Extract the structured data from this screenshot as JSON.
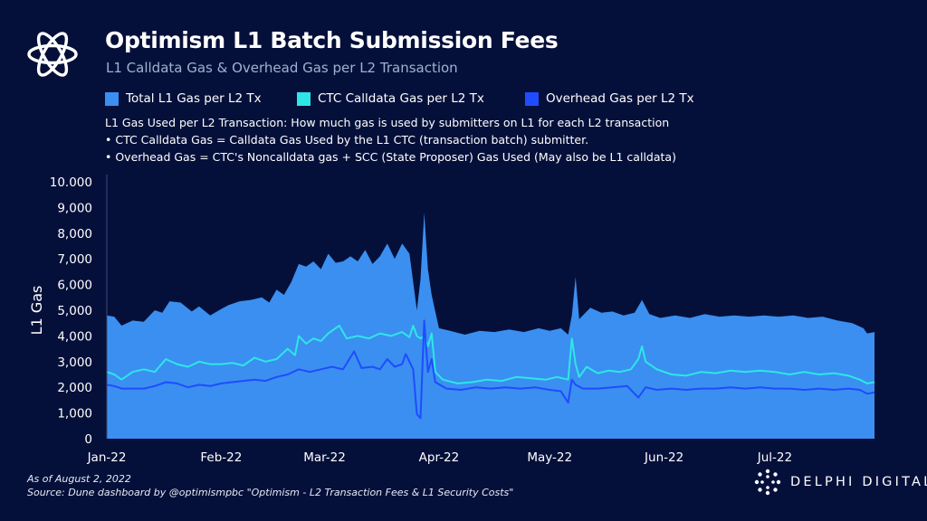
{
  "header": {
    "title": "Optimism L1 Batch Submission Fees",
    "subtitle": "L1 Calldata Gas & Overhead Gas per L2 Transaction"
  },
  "notes": [
    "L1 Gas Used per L2 Transaction: How much gas is used by submitters on L1 for each L2 transaction",
    "• CTC Calldata Gas = Calldata Gas Used by the L1 CTC (transaction batch) submitter.",
    "• Overhead Gas = CTC's Noncalldata gas + SCC (State Proposer) Gas Used (May also be L1 calldata)"
  ],
  "footer": {
    "as_of": "As of August 2, 2022",
    "source": "Source: Dune dashboard by @optimismpbc \"Optimism - L2 Transaction Fees & L1 Security Costs\""
  },
  "brand": {
    "name": "DELPHI DIGITAL",
    "logo_icon": "delphi-logo-icon"
  },
  "chart_data": {
    "type": "area",
    "ylabel": "L1 Gas",
    "ylim": [
      0,
      10000
    ],
    "yticks": [
      0,
      1000,
      2000,
      3000,
      4000,
      5000,
      6000,
      7000,
      8000,
      9000,
      10000
    ],
    "ytick_labels": [
      "0",
      "1,000",
      "2,000",
      "3,000",
      "4,000",
      "5,000",
      "6,000",
      "7,000",
      "8,000",
      "9,000",
      "10.000"
    ],
    "xlim": [
      "2022-01-01",
      "2022-07-28"
    ],
    "xticks": [
      {
        "date": "2022-01-01",
        "label": "Jan-22"
      },
      {
        "date": "2022-02-01",
        "label": "Feb-22"
      },
      {
        "date": "2022-03-01",
        "label": "Mar-22"
      },
      {
        "date": "2022-04-01",
        "label": "Apr-22"
      },
      {
        "date": "2022-05-01",
        "label": "May-22"
      },
      {
        "date": "2022-06-01",
        "label": "Jun-22"
      },
      {
        "date": "2022-07-01",
        "label": "Jul-22"
      }
    ],
    "legend_position": "top",
    "grid": false,
    "series": [
      {
        "name": "Total L1 Gas per L2 Tx",
        "style": "area",
        "color": "#3b8ff0",
        "points": [
          [
            "2022-01-01",
            4800
          ],
          [
            "2022-01-03",
            4750
          ],
          [
            "2022-01-05",
            4400
          ],
          [
            "2022-01-08",
            4600
          ],
          [
            "2022-01-11",
            4550
          ],
          [
            "2022-01-14",
            5000
          ],
          [
            "2022-01-16",
            4900
          ],
          [
            "2022-01-18",
            5350
          ],
          [
            "2022-01-21",
            5300
          ],
          [
            "2022-01-24",
            4950
          ],
          [
            "2022-01-26",
            5150
          ],
          [
            "2022-01-29",
            4800
          ],
          [
            "2022-02-01",
            5050
          ],
          [
            "2022-02-03",
            5200
          ],
          [
            "2022-02-06",
            5350
          ],
          [
            "2022-02-09",
            5400
          ],
          [
            "2022-02-12",
            5500
          ],
          [
            "2022-02-14",
            5300
          ],
          [
            "2022-02-16",
            5800
          ],
          [
            "2022-02-18",
            5600
          ],
          [
            "2022-02-20",
            6100
          ],
          [
            "2022-02-22",
            6800
          ],
          [
            "2022-02-24",
            6700
          ],
          [
            "2022-02-26",
            6900
          ],
          [
            "2022-02-28",
            6600
          ],
          [
            "2022-03-02",
            7200
          ],
          [
            "2022-03-04",
            6850
          ],
          [
            "2022-03-06",
            6900
          ],
          [
            "2022-03-08",
            7100
          ],
          [
            "2022-03-10",
            6900
          ],
          [
            "2022-03-12",
            7350
          ],
          [
            "2022-03-14",
            6800
          ],
          [
            "2022-03-16",
            7100
          ],
          [
            "2022-03-18",
            7600
          ],
          [
            "2022-03-20",
            7000
          ],
          [
            "2022-03-22",
            7600
          ],
          [
            "2022-03-24",
            7200
          ],
          [
            "2022-03-26",
            5000
          ],
          [
            "2022-03-27",
            6200
          ],
          [
            "2022-03-28",
            8800
          ],
          [
            "2022-03-29",
            6600
          ],
          [
            "2022-03-30",
            5600
          ],
          [
            "2022-04-01",
            4300
          ],
          [
            "2022-04-04",
            4200
          ],
          [
            "2022-04-08",
            4050
          ],
          [
            "2022-04-12",
            4200
          ],
          [
            "2022-04-16",
            4150
          ],
          [
            "2022-04-20",
            4250
          ],
          [
            "2022-04-24",
            4150
          ],
          [
            "2022-04-28",
            4300
          ],
          [
            "2022-05-01",
            4200
          ],
          [
            "2022-05-04",
            4300
          ],
          [
            "2022-05-06",
            4050
          ],
          [
            "2022-05-07",
            4800
          ],
          [
            "2022-05-08",
            6300
          ],
          [
            "2022-05-09",
            4650
          ],
          [
            "2022-05-12",
            5100
          ],
          [
            "2022-05-15",
            4900
          ],
          [
            "2022-05-18",
            4950
          ],
          [
            "2022-05-21",
            4800
          ],
          [
            "2022-05-24",
            4900
          ],
          [
            "2022-05-26",
            5400
          ],
          [
            "2022-05-28",
            4850
          ],
          [
            "2022-05-31",
            4700
          ],
          [
            "2022-06-04",
            4800
          ],
          [
            "2022-06-08",
            4700
          ],
          [
            "2022-06-12",
            4850
          ],
          [
            "2022-06-16",
            4750
          ],
          [
            "2022-06-20",
            4800
          ],
          [
            "2022-06-24",
            4750
          ],
          [
            "2022-06-28",
            4800
          ],
          [
            "2022-07-02",
            4750
          ],
          [
            "2022-07-06",
            4800
          ],
          [
            "2022-07-10",
            4700
          ],
          [
            "2022-07-14",
            4750
          ],
          [
            "2022-07-18",
            4600
          ],
          [
            "2022-07-22",
            4500
          ],
          [
            "2022-07-25",
            4300
          ],
          [
            "2022-07-26",
            4100
          ],
          [
            "2022-07-28",
            4150
          ]
        ]
      },
      {
        "name": "CTC Calldata Gas per L2 Tx",
        "style": "line",
        "color": "#2ee6e6",
        "points": [
          [
            "2022-01-01",
            2600
          ],
          [
            "2022-01-03",
            2500
          ],
          [
            "2022-01-05",
            2300
          ],
          [
            "2022-01-08",
            2600
          ],
          [
            "2022-01-11",
            2700
          ],
          [
            "2022-01-14",
            2600
          ],
          [
            "2022-01-17",
            3100
          ],
          [
            "2022-01-20",
            2900
          ],
          [
            "2022-01-23",
            2800
          ],
          [
            "2022-01-26",
            3000
          ],
          [
            "2022-01-29",
            2900
          ],
          [
            "2022-02-01",
            2900
          ],
          [
            "2022-02-04",
            2950
          ],
          [
            "2022-02-07",
            2850
          ],
          [
            "2022-02-10",
            3150
          ],
          [
            "2022-02-13",
            3000
          ],
          [
            "2022-02-16",
            3100
          ],
          [
            "2022-02-19",
            3500
          ],
          [
            "2022-02-21",
            3250
          ],
          [
            "2022-02-22",
            4000
          ],
          [
            "2022-02-24",
            3700
          ],
          [
            "2022-02-26",
            3900
          ],
          [
            "2022-02-28",
            3800
          ],
          [
            "2022-03-02",
            4100
          ],
          [
            "2022-03-05",
            4400
          ],
          [
            "2022-03-07",
            3900
          ],
          [
            "2022-03-10",
            4000
          ],
          [
            "2022-03-13",
            3900
          ],
          [
            "2022-03-16",
            4100
          ],
          [
            "2022-03-19",
            4000
          ],
          [
            "2022-03-22",
            4150
          ],
          [
            "2022-03-24",
            3950
          ],
          [
            "2022-03-25",
            4400
          ],
          [
            "2022-03-26",
            4000
          ],
          [
            "2022-03-27",
            3900
          ],
          [
            "2022-03-28",
            4000
          ],
          [
            "2022-03-29",
            3600
          ],
          [
            "2022-03-30",
            4100
          ],
          [
            "2022-03-31",
            2600
          ],
          [
            "2022-04-02",
            2300
          ],
          [
            "2022-04-06",
            2150
          ],
          [
            "2022-04-10",
            2200
          ],
          [
            "2022-04-14",
            2300
          ],
          [
            "2022-04-18",
            2250
          ],
          [
            "2022-04-22",
            2400
          ],
          [
            "2022-04-26",
            2350
          ],
          [
            "2022-04-30",
            2300
          ],
          [
            "2022-05-03",
            2400
          ],
          [
            "2022-05-06",
            2300
          ],
          [
            "2022-05-07",
            3900
          ],
          [
            "2022-05-08",
            2900
          ],
          [
            "2022-05-09",
            2400
          ],
          [
            "2022-05-11",
            2800
          ],
          [
            "2022-05-14",
            2550
          ],
          [
            "2022-05-17",
            2650
          ],
          [
            "2022-05-20",
            2600
          ],
          [
            "2022-05-23",
            2700
          ],
          [
            "2022-05-25",
            3100
          ],
          [
            "2022-05-26",
            3600
          ],
          [
            "2022-05-27",
            3000
          ],
          [
            "2022-05-30",
            2700
          ],
          [
            "2022-06-03",
            2500
          ],
          [
            "2022-06-07",
            2450
          ],
          [
            "2022-06-11",
            2600
          ],
          [
            "2022-06-15",
            2550
          ],
          [
            "2022-06-19",
            2650
          ],
          [
            "2022-06-23",
            2600
          ],
          [
            "2022-06-27",
            2650
          ],
          [
            "2022-07-01",
            2600
          ],
          [
            "2022-07-05",
            2500
          ],
          [
            "2022-07-09",
            2600
          ],
          [
            "2022-07-13",
            2500
          ],
          [
            "2022-07-17",
            2550
          ],
          [
            "2022-07-21",
            2450
          ],
          [
            "2022-07-24",
            2300
          ],
          [
            "2022-07-26",
            2150
          ],
          [
            "2022-07-28",
            2200
          ]
        ]
      },
      {
        "name": "Overhead Gas per L2 Tx",
        "style": "line",
        "color": "#1f4cff",
        "points": [
          [
            "2022-01-01",
            2100
          ],
          [
            "2022-01-03",
            2050
          ],
          [
            "2022-01-05",
            1950
          ],
          [
            "2022-01-08",
            1950
          ],
          [
            "2022-01-11",
            1950
          ],
          [
            "2022-01-14",
            2050
          ],
          [
            "2022-01-17",
            2200
          ],
          [
            "2022-01-20",
            2150
          ],
          [
            "2022-01-23",
            2000
          ],
          [
            "2022-01-26",
            2100
          ],
          [
            "2022-01-29",
            2050
          ],
          [
            "2022-02-01",
            2150
          ],
          [
            "2022-02-04",
            2200
          ],
          [
            "2022-02-07",
            2250
          ],
          [
            "2022-02-10",
            2300
          ],
          [
            "2022-02-13",
            2250
          ],
          [
            "2022-02-16",
            2400
          ],
          [
            "2022-02-19",
            2500
          ],
          [
            "2022-02-22",
            2700
          ],
          [
            "2022-02-25",
            2600
          ],
          [
            "2022-02-28",
            2700
          ],
          [
            "2022-03-03",
            2800
          ],
          [
            "2022-03-06",
            2700
          ],
          [
            "2022-03-09",
            3400
          ],
          [
            "2022-03-11",
            2750
          ],
          [
            "2022-03-14",
            2800
          ],
          [
            "2022-03-16",
            2700
          ],
          [
            "2022-03-18",
            3100
          ],
          [
            "2022-03-20",
            2800
          ],
          [
            "2022-03-22",
            2900
          ],
          [
            "2022-03-23",
            3300
          ],
          [
            "2022-03-25",
            2700
          ],
          [
            "2022-03-26",
            950
          ],
          [
            "2022-03-27",
            800
          ],
          [
            "2022-03-28",
            4600
          ],
          [
            "2022-03-29",
            2600
          ],
          [
            "2022-03-30",
            3100
          ],
          [
            "2022-03-31",
            2200
          ],
          [
            "2022-04-03",
            1950
          ],
          [
            "2022-04-07",
            1900
          ],
          [
            "2022-04-11",
            2000
          ],
          [
            "2022-04-15",
            1950
          ],
          [
            "2022-04-19",
            2000
          ],
          [
            "2022-04-23",
            1950
          ],
          [
            "2022-04-27",
            2000
          ],
          [
            "2022-05-01",
            1900
          ],
          [
            "2022-05-04",
            1850
          ],
          [
            "2022-05-06",
            1400
          ],
          [
            "2022-05-07",
            2300
          ],
          [
            "2022-05-08",
            2100
          ],
          [
            "2022-05-10",
            1950
          ],
          [
            "2022-05-14",
            1950
          ],
          [
            "2022-05-18",
            2000
          ],
          [
            "2022-05-22",
            2050
          ],
          [
            "2022-05-25",
            1600
          ],
          [
            "2022-05-27",
            2000
          ],
          [
            "2022-05-30",
            1900
          ],
          [
            "2022-06-03",
            1950
          ],
          [
            "2022-06-07",
            1900
          ],
          [
            "2022-06-11",
            1950
          ],
          [
            "2022-06-15",
            1950
          ],
          [
            "2022-06-19",
            2000
          ],
          [
            "2022-06-23",
            1950
          ],
          [
            "2022-06-27",
            2000
          ],
          [
            "2022-07-01",
            1950
          ],
          [
            "2022-07-05",
            1950
          ],
          [
            "2022-07-09",
            1900
          ],
          [
            "2022-07-13",
            1950
          ],
          [
            "2022-07-17",
            1900
          ],
          [
            "2022-07-21",
            1950
          ],
          [
            "2022-07-24",
            1900
          ],
          [
            "2022-07-26",
            1750
          ],
          [
            "2022-07-28",
            1800
          ]
        ]
      }
    ]
  }
}
